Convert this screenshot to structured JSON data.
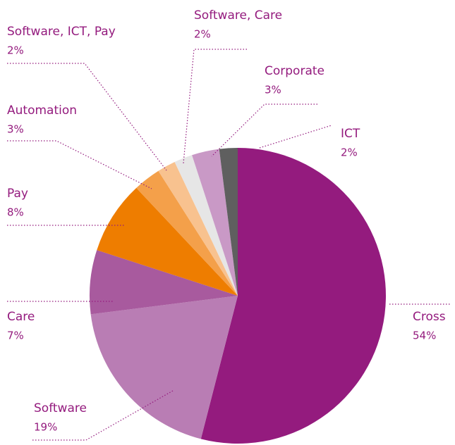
{
  "chart_data": {
    "type": "pie",
    "categories": [
      "Cross",
      "Software",
      "Care",
      "Pay",
      "Automation",
      "Software, ICT, Pay",
      "Software, Care",
      "Corporate",
      "ICT"
    ],
    "values": [
      54,
      19,
      7,
      8,
      3,
      2,
      2,
      3,
      2
    ],
    "value_labels": [
      "54%",
      "19%",
      "7%",
      "8%",
      "3%",
      "2%",
      "2%",
      "3%",
      "2%"
    ],
    "colors": [
      "#941b7e",
      "#b97db4",
      "#a85a9e",
      "#ee7d00",
      "#f4a04a",
      "#f8c28f",
      "#e6e6e6",
      "#c999c6",
      "#5f5f5f"
    ]
  }
}
